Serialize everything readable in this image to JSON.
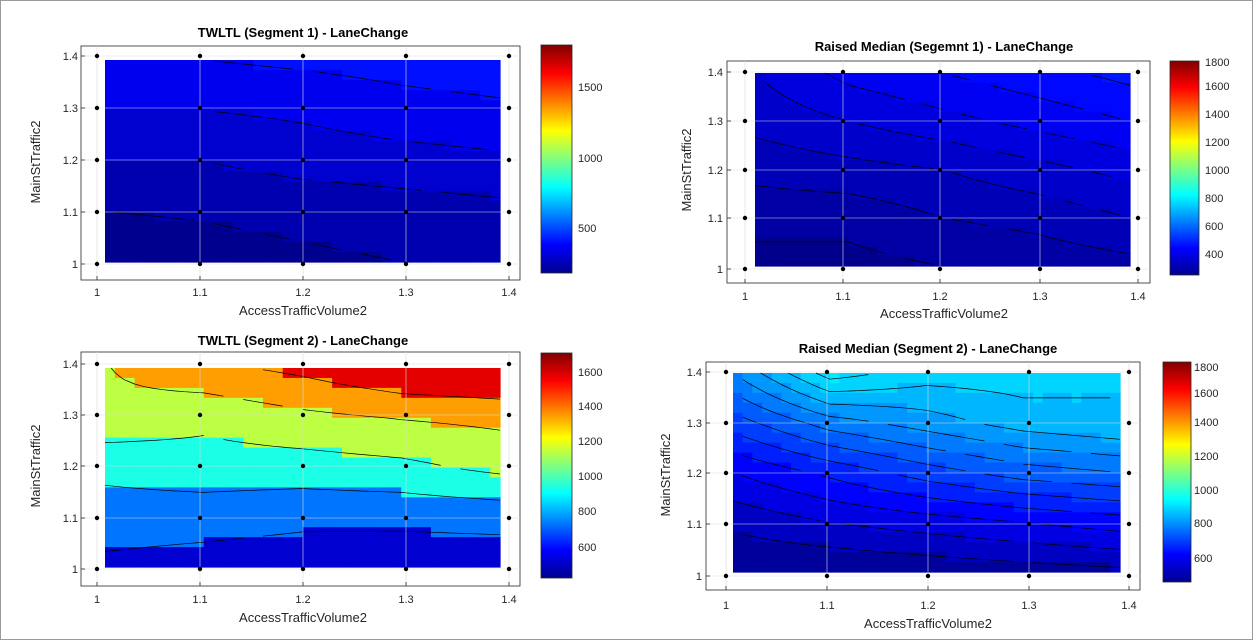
{
  "chart_data": [
    {
      "type": "contour",
      "title": "TWLTL (Segment 1) - LaneChange",
      "xlabel": "AccessTrafficVolume2",
      "ylabel": "MainStTraffic2",
      "x_ticks": [
        "1",
        "1.1",
        "1.2",
        "1.3",
        "1.4"
      ],
      "y_ticks": [
        "1",
        "1.1",
        "1.2",
        "1.3",
        "1.4"
      ],
      "xlim": [
        1,
        1.4
      ],
      "ylim": [
        1,
        1.4
      ],
      "colorbar_ticks": [
        "500",
        "1000",
        "1500"
      ],
      "clim": [
        200,
        1800
      ],
      "grid": true,
      "contour_levels": [
        250,
        300,
        350,
        400,
        450
      ],
      "grid_values": [
        [
          220,
          230,
          240,
          250,
          260
        ],
        [
          250,
          255,
          265,
          275,
          285
        ],
        [
          300,
          300,
          320,
          330,
          340
        ],
        [
          350,
          350,
          360,
          380,
          390
        ],
        [
          400,
          400,
          410,
          420,
          430
        ]
      ]
    },
    {
      "type": "contour",
      "title": "Raised Median (Segemnt 1) - LaneChange",
      "xlabel": "AccessTrafficVolume2",
      "ylabel": "MainStTraffic2",
      "x_ticks": [
        "1",
        "1.1",
        "1.2",
        "1.3",
        "1.4"
      ],
      "y_ticks": [
        "1",
        "1.1",
        "1.2",
        "1.3",
        "1.4"
      ],
      "xlim": [
        1,
        1.4
      ],
      "ylim": [
        1,
        1.4
      ],
      "colorbar_ticks": [
        "400",
        "600",
        "800",
        "1000",
        "1200",
        "1400",
        "1600",
        "1800"
      ],
      "clim": [
        250,
        1800
      ],
      "grid": true,
      "contour_levels": [
        290,
        320,
        350,
        380,
        410,
        440,
        470
      ],
      "grid_values": [
        [
          280,
          280,
          290,
          300,
          310
        ],
        [
          300,
          300,
          320,
          330,
          350
        ],
        [
          330,
          340,
          350,
          370,
          390
        ],
        [
          360,
          380,
          400,
          420,
          440
        ],
        [
          380,
          420,
          440,
          460,
          480
        ]
      ]
    },
    {
      "type": "contour",
      "title": "TWLTL (Segment 2) - LaneChange",
      "xlabel": "AccessTrafficVolume2",
      "ylabel": "MainStTraffic2",
      "x_ticks": [
        "1",
        "1.1",
        "1.2",
        "1.3",
        "1.4"
      ],
      "y_ticks": [
        "1",
        "1.1",
        "1.2",
        "1.3",
        "1.4"
      ],
      "xlim": [
        1,
        1.4
      ],
      "ylim": [
        1,
        1.4
      ],
      "colorbar_ticks": [
        "600",
        "800",
        "1000",
        "1200",
        "1400",
        "1600"
      ],
      "clim": [
        450,
        1700
      ],
      "grid": true,
      "contour_levels": [
        650,
        850,
        1050,
        1250,
        1450
      ],
      "grid_values": [
        [
          600,
          560,
          530,
          520,
          520
        ],
        [
          760,
          740,
          700,
          700,
          720
        ],
        [
          900,
          960,
          960,
          1000,
          1100
        ],
        [
          1200,
          1100,
          1200,
          1260,
          1300
        ],
        [
          1240,
          1400,
          1500,
          1650,
          1700
        ]
      ]
    },
    {
      "type": "contour",
      "title": "Raised Median (Segment 2) - LaneChange",
      "xlabel": "AccessTrafficVolume2",
      "ylabel": "MainStTraffic2",
      "x_ticks": [
        "1",
        "1.1",
        "1.2",
        "1.3",
        "1.4"
      ],
      "y_ticks": [
        "1",
        "1.1",
        "1.2",
        "1.3",
        "1.4"
      ],
      "xlim": [
        1,
        1.4
      ],
      "ylim": [
        1,
        1.4
      ],
      "colorbar_ticks": [
        "600",
        "800",
        "1000",
        "1200",
        "1400",
        "1600",
        "1800"
      ],
      "clim": [
        450,
        1800
      ],
      "grid": true,
      "contour_levels": [
        520,
        560,
        600,
        640,
        680,
        720,
        760,
        800,
        840,
        880,
        920
      ],
      "grid_values": [
        [
          480,
          480,
          490,
          500,
          510
        ],
        [
          530,
          560,
          580,
          600,
          620
        ],
        [
          600,
          650,
          700,
          740,
          760
        ],
        [
          700,
          780,
          820,
          860,
          880
        ],
        [
          800,
          940,
          900,
          900,
          880
        ]
      ]
    }
  ]
}
